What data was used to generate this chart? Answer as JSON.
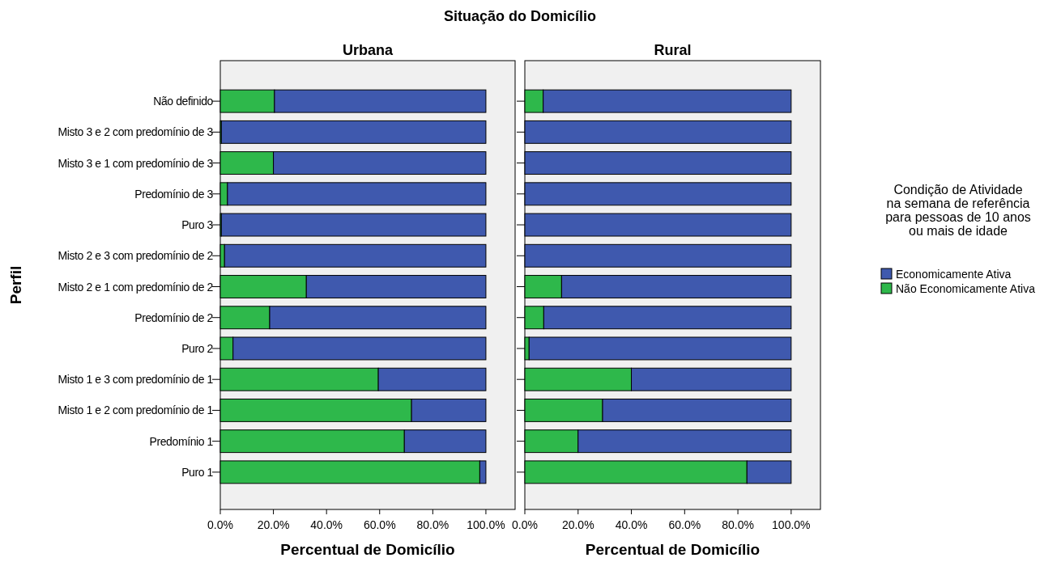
{
  "chart_data": [
    {
      "type": "bar",
      "title": "Urbana",
      "annotations": [
        "Situação do Domicílio"
      ],
      "ylabel": "Perfil",
      "xlabel": "Percentual de Domicílio",
      "orientation": "horizontal",
      "stacked": true,
      "grid": false,
      "legend": false,
      "categories": [
        "Não definido",
        "Misto 3 e 2 com predomínio de 3",
        "Misto 3 e 1 com predomínio de 3",
        "Predomínio de 3",
        "Puro 3",
        "Misto 2 e 3 com predomínio de 2",
        "Misto 2 e 1 com predomínio de 2",
        "Predomínio de 2",
        "Puro 2",
        "Misto 1 e 3 com predomínio de 1",
        "Misto 1 e 2 com predomínio de 1",
        "Predomínio 1",
        "Puro 1"
      ],
      "xlim": [
        0,
        111
      ],
      "xticks": [
        {
          "value": 0,
          "label": "0.0%"
        },
        {
          "value": 20,
          "label": "20.0%"
        },
        {
          "value": 40,
          "label": "40.0%"
        },
        {
          "value": 60,
          "label": "60.0%"
        },
        {
          "value": 80,
          "label": "80.0%"
        },
        {
          "value": 100,
          "label": "100.0%"
        }
      ],
      "series": [
        {
          "color": "#2eb84b",
          "values": [
            20.4,
            0.4,
            20.0,
            2.7,
            0.4,
            1.6,
            32.4,
            18.6,
            4.8,
            59.5,
            72.0,
            69.3,
            97.7
          ]
        },
        {
          "color": "#3f59ae",
          "values": [
            79.6,
            99.6,
            80.0,
            97.3,
            99.6,
            98.4,
            67.6,
            81.4,
            95.2,
            40.5,
            28.0,
            30.7,
            2.3
          ]
        }
      ]
    },
    {
      "type": "bar",
      "title": "Rural",
      "xlabel": "Percentual de Domicílio",
      "orientation": "horizontal",
      "stacked": true,
      "grid": false,
      "legend": "right",
      "tick_labels": "x",
      "legend_title": "Condição de Atividade na semana de referência para pessoas de 10 anos ou mais de idade",
      "categories": [
        null,
        null,
        null,
        null,
        null,
        null,
        null,
        null,
        null,
        null,
        null,
        null,
        null
      ],
      "xlim": [
        0,
        111
      ],
      "xticks": [
        {
          "value": 0,
          "label": "0.0%"
        },
        {
          "value": 20,
          "label": "20.0%"
        },
        {
          "value": 40,
          "label": "40.0%"
        },
        {
          "value": 60,
          "label": "60.0%"
        },
        {
          "value": 80,
          "label": "80.0%"
        },
        {
          "value": 100,
          "label": "100.0%"
        }
      ],
      "series": [
        {
          "name": "Não Economicamente Ativa",
          "color": "#2eb84b",
          "values": [
            6.9,
            0,
            0,
            0,
            0,
            0,
            13.8,
            7.1,
            1.6,
            40.0,
            29.2,
            20.0,
            83.4
          ]
        },
        {
          "name": "Economicamente Ativa",
          "color": "#3f59ae",
          "values": [
            93.1,
            100,
            100,
            100,
            100,
            100,
            86.2,
            92.9,
            98.4,
            60.0,
            70.8,
            80.0,
            16.6
          ]
        }
      ]
    }
  ]
}
